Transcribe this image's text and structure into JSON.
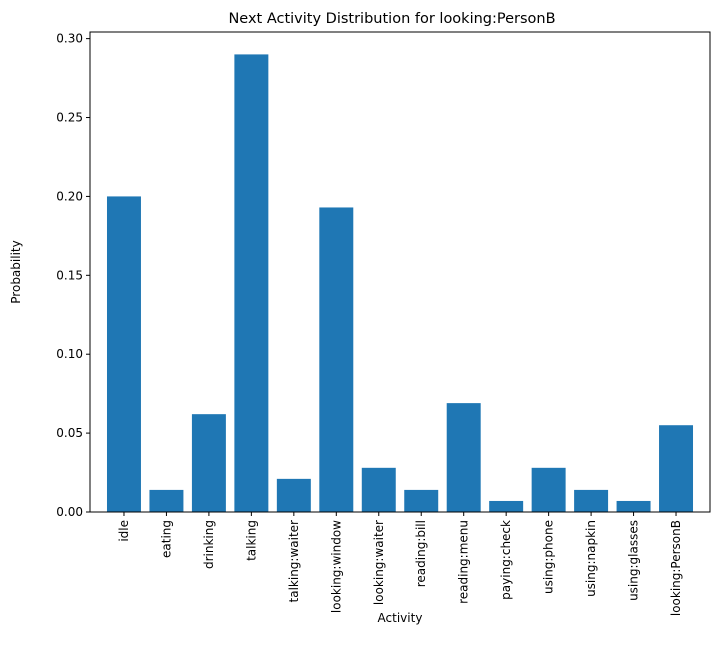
{
  "chart_data": {
    "type": "bar",
    "title": "Next Activity Distribution for looking:PersonB",
    "xlabel": "Activity",
    "ylabel": "Probability",
    "ylim": [
      0,
      0.3
    ],
    "yticks": [
      "0.00",
      "0.05",
      "0.10",
      "0.15",
      "0.20",
      "0.25",
      "0.30"
    ],
    "ytick_values": [
      0,
      0.05,
      0.1,
      0.15,
      0.2,
      0.25,
      0.3
    ],
    "grid": false,
    "bar_color": "#1f77b4",
    "categories": [
      "idle",
      "eating",
      "drinking",
      "talking",
      "talking:waiter",
      "looking:window",
      "looking:waiter",
      "reading:bill",
      "reading:menu",
      "paying:check",
      "using:phone",
      "using:napkin",
      "using:glasses",
      "looking:PersonB"
    ],
    "values": [
      0.2,
      0.014,
      0.062,
      0.29,
      0.021,
      0.193,
      0.028,
      0.014,
      0.069,
      0.007,
      0.028,
      0.014,
      0.007,
      0.055
    ]
  }
}
